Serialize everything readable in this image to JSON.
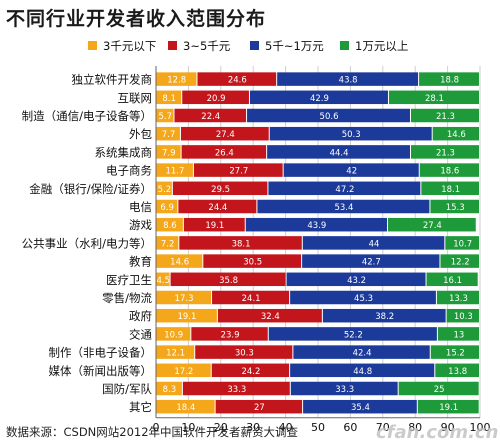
{
  "chart_data": {
    "type": "bar",
    "stacked": true,
    "orientation": "horizontal",
    "title": "不同行业开发者收入范围分布",
    "legend_position": "top",
    "grid": true,
    "xlim": [
      0,
      100
    ],
    "x_ticks": [
      "0",
      "10",
      "20",
      "30",
      "40",
      "50",
      "60",
      "70",
      "80",
      "90",
      "100"
    ],
    "categories": [
      "独立软件开发商",
      "互联网",
      "制造（通信/电子设备等）",
      "外包",
      "系统集成商",
      "电子商务",
      "金融（银行/保险/证券）",
      "电信",
      "游戏",
      "公共事业（水利/电力等）",
      "教育",
      "医疗卫生",
      "零售/物流",
      "政府",
      "交通",
      "制作（非电子设备）",
      "媒体（新闻出版等）",
      "国防/军队",
      "其它"
    ],
    "series": [
      {
        "name": "3千元以下",
        "color": "#f5a71c",
        "values": [
          12.8,
          8.1,
          5.7,
          7.7,
          7.9,
          11.7,
          5.2,
          6.9,
          8.6,
          7.2,
          14.6,
          4.5,
          17.3,
          19.1,
          10.9,
          12.1,
          17.2,
          8.3,
          18.4
        ]
      },
      {
        "name": "3~5千元",
        "color": "#c3161c",
        "values": [
          24.6,
          20.9,
          22.4,
          27.4,
          26.4,
          27.7,
          29.5,
          24.4,
          19.1,
          38.1,
          30.5,
          35.8,
          24.1,
          32.4,
          23.9,
          30.3,
          24.2,
          33.3,
          27
        ]
      },
      {
        "name": "5千~1万元",
        "color": "#1c3a9a",
        "values": [
          43.8,
          42.9,
          50.6,
          50.3,
          44.4,
          42,
          47.2,
          53.4,
          43.9,
          44,
          42.7,
          43.2,
          45.3,
          38.2,
          52.2,
          42.4,
          44.8,
          33.3,
          35.4
        ]
      },
      {
        "name": "1万元以上",
        "color": "#1e9a3a",
        "values": [
          18.8,
          28.1,
          21.3,
          14.6,
          21.3,
          18.6,
          18.1,
          15.3,
          27.4,
          10.7,
          12.2,
          16.1,
          13.3,
          10.3,
          13,
          15.2,
          13.8,
          25,
          19.1
        ]
      }
    ]
  },
  "source_text": "数据来源：CSDN网站2012年中国软件开发者薪资大调查",
  "watermark_text": "cfan.com.cn"
}
